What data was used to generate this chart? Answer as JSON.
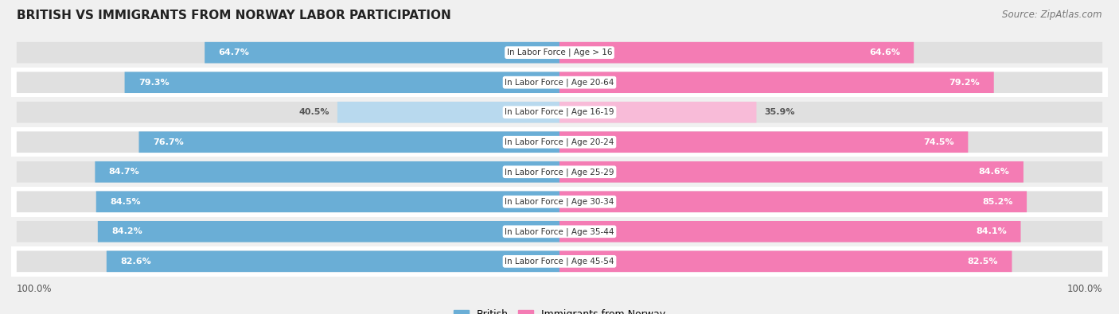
{
  "title": "BRITISH VS IMMIGRANTS FROM NORWAY LABOR PARTICIPATION",
  "source": "Source: ZipAtlas.com",
  "categories": [
    "In Labor Force | Age > 16",
    "In Labor Force | Age 20-64",
    "In Labor Force | Age 16-19",
    "In Labor Force | Age 20-24",
    "In Labor Force | Age 25-29",
    "In Labor Force | Age 30-34",
    "In Labor Force | Age 35-44",
    "In Labor Force | Age 45-54"
  ],
  "british_values": [
    64.7,
    79.3,
    40.5,
    76.7,
    84.7,
    84.5,
    84.2,
    82.6
  ],
  "norway_values": [
    64.6,
    79.2,
    35.9,
    74.5,
    84.6,
    85.2,
    84.1,
    82.5
  ],
  "british_color": "#6aaed6",
  "norway_color": "#f47cb4",
  "british_color_light": "#b8d9ee",
  "norway_color_light": "#f8bbd8",
  "label_color_dark": "#555555",
  "bar_height": 0.68,
  "xlim": 100.0,
  "bg_color": "#f0f0f0",
  "bar_bg_color": "#e0e0e0",
  "row_bg_white": "#ffffff",
  "legend_british": "British",
  "legend_norway": "Immigrants from Norway"
}
